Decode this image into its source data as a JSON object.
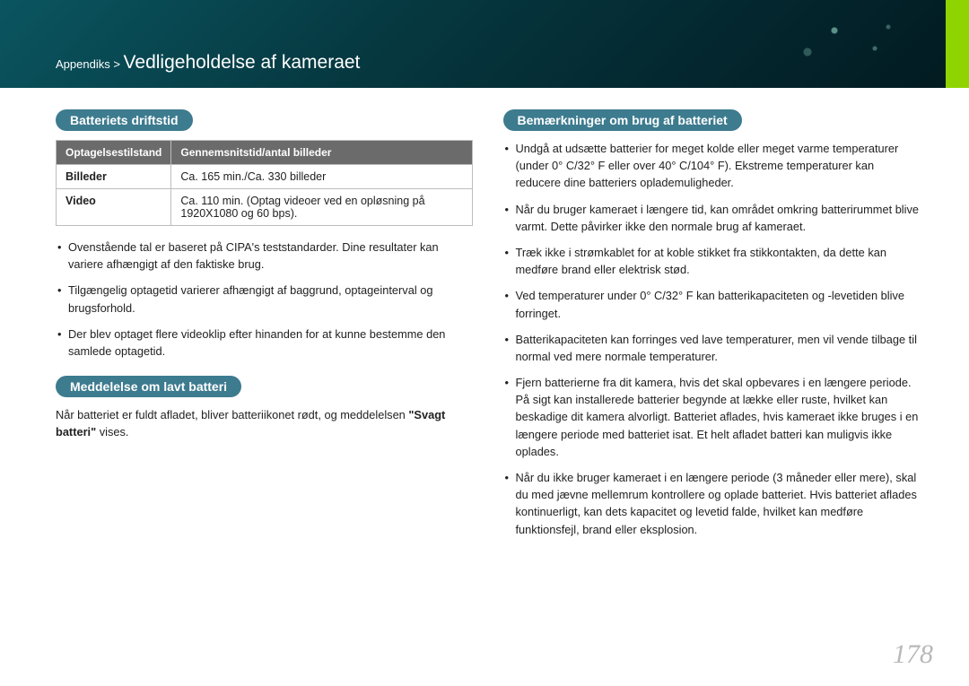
{
  "header": {
    "breadcrumb_parent": "Appendiks >",
    "breadcrumb_title": "Vedligeholdelse af kameraet",
    "bg_gradient_start": "#0a5560",
    "bg_gradient_end": "#021a20",
    "stripe_color": "#8fd400"
  },
  "left": {
    "section1": {
      "heading": "Batteriets driftstid",
      "table": {
        "headers": [
          "Optagelsestilstand",
          "Gennemsnitstid/antal billeder"
        ],
        "rows": [
          {
            "label": "Billeder",
            "value": "Ca. 165 min./Ca. 330 billeder"
          },
          {
            "label": "Video",
            "value": "Ca. 110 min. (Optag videoer ved en opløsning på 1920X1080 og 60 bps)."
          }
        ]
      },
      "bullets": [
        "Ovenstående tal er baseret på CIPA's teststandarder. Dine resultater kan variere afhængigt af den faktiske brug.",
        "Tilgængelig optagetid varierer afhængigt af baggrund, optageinterval og brugsforhold.",
        "Der blev optaget flere videoklip efter hinanden for at kunne bestemme den samlede optagetid."
      ]
    },
    "section2": {
      "heading": "Meddelelse om lavt batteri",
      "para_before": "Når batteriet er fuldt afladet, bliver batteriikonet rødt, og meddelelsen ",
      "para_bold": "\"Svagt batteri\"",
      "para_after": " vises."
    }
  },
  "right": {
    "section": {
      "heading": "Bemærkninger om brug af batteriet",
      "bullets": [
        "Undgå at udsætte batterier for meget kolde eller meget varme temperaturer (under 0° C/32° F eller over 40° C/104° F). Ekstreme temperaturer kan reducere dine batteriers oplademuligheder.",
        "Når du bruger kameraet i længere tid, kan området omkring batterirummet blive varmt. Dette påvirker ikke den normale brug af kameraet.",
        "Træk ikke i strømkablet for at koble stikket fra stikkontakten, da dette kan medføre brand eller elektrisk stød.",
        "Ved temperaturer under 0° C/32° F kan batterikapaciteten og -levetiden blive forringet.",
        "Batterikapaciteten kan forringes ved lave temperaturer, men vil vende tilbage til normal ved mere normale temperaturer.",
        "Fjern batterierne fra dit kamera, hvis det skal opbevares i en længere periode. På sigt kan installerede batterier begynde at lække eller ruste, hvilket kan beskadige dit kamera alvorligt. Batteriet aflades, hvis kameraet ikke bruges i en længere periode med batteriet isat. Et helt afladet batteri kan muligvis ikke oplades.",
        "Når du ikke bruger kameraet i en længere periode (3 måneder eller mere), skal du med jævne mellemrum kontrollere og oplade batteriet. Hvis batteriet aflades kontinuerligt, kan dets kapacitet og levetid falde, hvilket kan medføre funktionsfejl, brand eller eksplosion."
      ]
    }
  },
  "page_number": "178",
  "colors": {
    "pill_bg": "#3d7b8f",
    "th_bg": "#6b6b6b",
    "border": "#bdbdbd",
    "text": "#222222",
    "page_num": "#b8b8b8"
  }
}
